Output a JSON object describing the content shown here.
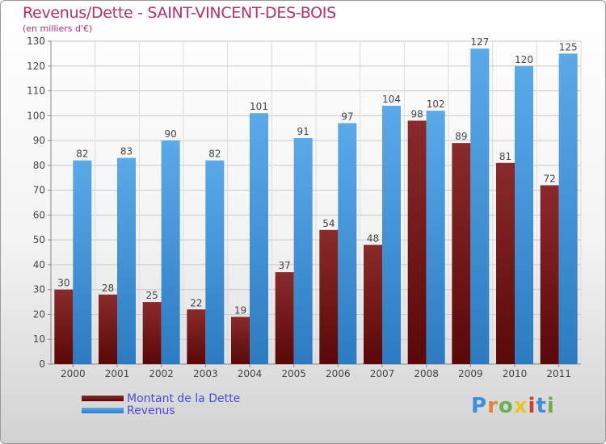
{
  "header": {
    "title": "Revenus/Dette - SAINT-VINCENT-DES-BOIS",
    "subtitle": "(en milliers d'€)"
  },
  "colors": {
    "title": "#b5306a",
    "dette_top": "#8a2a2a",
    "dette_bottom": "#5a0808",
    "revenus_top": "#5aaaea",
    "revenus_bottom": "#2c7bc2",
    "legend_text": "#4a4ae0"
  },
  "legend": {
    "items": [
      {
        "label": "Montant de la Dette",
        "color": "#6a1010"
      },
      {
        "label": "Revenus",
        "color": "#4a9ee0"
      }
    ]
  },
  "brand": {
    "letters": [
      "P",
      "r",
      "o",
      "x",
      "i",
      "t",
      "i"
    ]
  },
  "chart_data": {
    "type": "bar",
    "title": "Revenus/Dette - SAINT-VINCENT-DES-BOIS",
    "subtitle": "(en milliers d'€)",
    "xlabel": "",
    "ylabel": "",
    "ylim": [
      0,
      130
    ],
    "ytick_step": 10,
    "grid": true,
    "legend_position": "bottom-left",
    "categories": [
      "2000",
      "2001",
      "2002",
      "2003",
      "2004",
      "2005",
      "2006",
      "2007",
      "2008",
      "2009",
      "2010",
      "2011"
    ],
    "series": [
      {
        "name": "Montant de la Dette",
        "values": [
          30,
          28,
          25,
          22,
          19,
          37,
          54,
          48,
          98,
          89,
          81,
          72
        ]
      },
      {
        "name": "Revenus",
        "values": [
          82,
          83,
          90,
          82,
          101,
          91,
          97,
          104,
          102,
          127,
          120,
          125
        ]
      }
    ]
  }
}
